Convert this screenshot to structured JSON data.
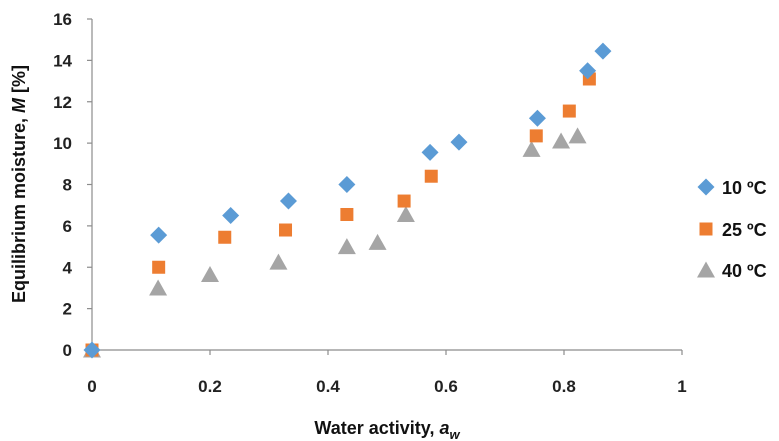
{
  "chart_data": {
    "type": "scatter",
    "xlim": [
      0,
      1
    ],
    "ylim": [
      0,
      16
    ],
    "x_ticks": [
      "0",
      "0.2",
      "0.4",
      "0.6",
      "0.8",
      "1"
    ],
    "y_ticks": [
      "0",
      "2",
      "4",
      "6",
      "8",
      "10",
      "12",
      "14",
      "16"
    ],
    "xlabel": {
      "main": "Water activity, ",
      "var": "a",
      "sub": "w"
    },
    "ylabel": {
      "main": "Equilibrium moisture, ",
      "var": "M",
      "unit": " [%]"
    },
    "grid": false,
    "legend_position": "right",
    "series": [
      {
        "name": "10 ºC",
        "marker": "diamond",
        "color": "#5B9BD5",
        "points": [
          [
            0.0,
            0.0
          ],
          [
            0.113,
            5.55
          ],
          [
            0.235,
            6.5
          ],
          [
            0.333,
            7.2
          ],
          [
            0.432,
            8.0
          ],
          [
            0.573,
            9.55
          ],
          [
            0.622,
            10.05
          ],
          [
            0.755,
            11.2
          ],
          [
            0.84,
            13.5
          ],
          [
            0.866,
            14.45
          ]
        ]
      },
      {
        "name": "25 ºC",
        "marker": "square",
        "color": "#ED7D31",
        "points": [
          [
            0.0,
            0.0
          ],
          [
            0.113,
            4.0
          ],
          [
            0.225,
            5.45
          ],
          [
            0.328,
            5.8
          ],
          [
            0.432,
            6.55
          ],
          [
            0.529,
            7.2
          ],
          [
            0.575,
            8.4
          ],
          [
            0.753,
            10.35
          ],
          [
            0.809,
            11.55
          ],
          [
            0.843,
            13.1
          ]
        ]
      },
      {
        "name": "40 ºC",
        "marker": "triangle",
        "color": "#A5A5A5",
        "points": [
          [
            0.0,
            0.0
          ],
          [
            0.112,
            3.0
          ],
          [
            0.2,
            3.65
          ],
          [
            0.316,
            4.25
          ],
          [
            0.432,
            5.0
          ],
          [
            0.484,
            5.2
          ],
          [
            0.532,
            6.55
          ],
          [
            0.745,
            9.7
          ],
          [
            0.795,
            10.1
          ],
          [
            0.823,
            10.35
          ]
        ]
      }
    ]
  }
}
